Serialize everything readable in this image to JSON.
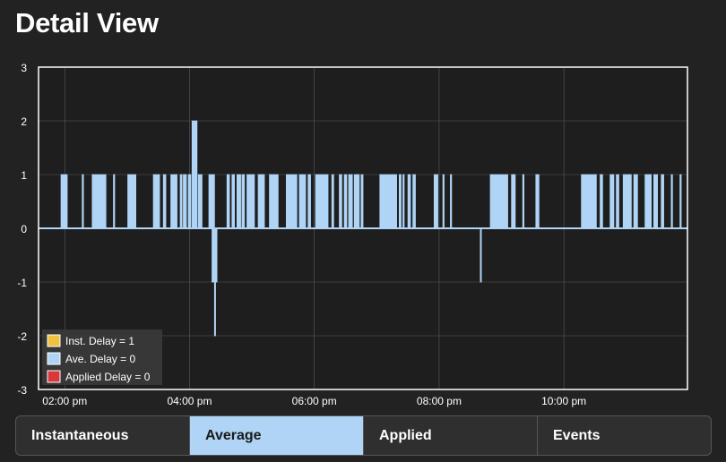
{
  "page": {
    "title": "Detail View"
  },
  "tabs": [
    {
      "label": "Instantaneous",
      "active": false
    },
    {
      "label": "Average",
      "active": true
    },
    {
      "label": "Applied",
      "active": false
    },
    {
      "label": "Events",
      "active": false
    }
  ],
  "colors": {
    "background": "#222222",
    "plot_area": "#1e1e1e",
    "grid": "#5a5a5a",
    "inst": "#f0c040",
    "ave": "#afd4f5",
    "applied": "#d9383a",
    "tab_active": "#afd4f5"
  },
  "chart_data": {
    "type": "line",
    "title": "",
    "xlabel": "",
    "ylabel": "",
    "ylim": [
      -3,
      3
    ],
    "yticks": [
      "3",
      "2",
      "1",
      "0",
      "-1",
      "-2",
      "-3"
    ],
    "xticks": [
      "02:00 pm",
      "04:00 pm",
      "06:00 pm",
      "08:00 pm",
      "10:00 pm"
    ],
    "xlim_hours": [
      13.58,
      23.98
    ],
    "grid": true,
    "legend_position": "bottom-left",
    "legend": [
      {
        "label": "Inst. Delay = 1",
        "color": "#f0c040"
      },
      {
        "label": "Ave. Delay = 0",
        "color": "#afd4f5"
      },
      {
        "label": "Applied Delay = 0",
        "color": "#d9383a"
      }
    ],
    "series": [
      {
        "name": "Ave. Delay",
        "baseline": 0,
        "pulses": [
          [
            13.94,
            14.04,
            1
          ],
          [
            14.28,
            14.3,
            1
          ],
          [
            14.44,
            14.66,
            1
          ],
          [
            14.78,
            14.8,
            1
          ],
          [
            15.01,
            15.14,
            1
          ],
          [
            15.42,
            15.52,
            1
          ],
          [
            15.58,
            15.62,
            1
          ],
          [
            15.7,
            15.8,
            1
          ],
          [
            15.85,
            15.88,
            1
          ],
          [
            15.9,
            15.95,
            1
          ],
          [
            15.98,
            16.02,
            1
          ],
          [
            16.04,
            16.12,
            2
          ],
          [
            16.14,
            16.2,
            1
          ],
          [
            16.31,
            16.4,
            1
          ],
          [
            16.36,
            16.44,
            -1
          ],
          [
            16.4,
            16.41,
            -2
          ],
          [
            16.6,
            16.64,
            1
          ],
          [
            16.68,
            16.72,
            1
          ],
          [
            16.76,
            16.82,
            1
          ],
          [
            16.84,
            16.88,
            1
          ],
          [
            16.92,
            17.04,
            1
          ],
          [
            17.1,
            17.2,
            1
          ],
          [
            17.28,
            17.42,
            1
          ],
          [
            17.55,
            17.72,
            1
          ],
          [
            17.76,
            17.86,
            1
          ],
          [
            17.9,
            17.94,
            1
          ],
          [
            18.02,
            18.22,
            1
          ],
          [
            18.28,
            18.31,
            1
          ],
          [
            18.4,
            18.44,
            1
          ],
          [
            18.48,
            18.52,
            1
          ],
          [
            18.55,
            18.61,
            1
          ],
          [
            18.64,
            18.72,
            1
          ],
          [
            18.75,
            18.78,
            1
          ],
          [
            19.05,
            19.32,
            1
          ],
          [
            19.36,
            19.39,
            1
          ],
          [
            19.42,
            19.44,
            1
          ],
          [
            19.5,
            19.54,
            1
          ],
          [
            19.58,
            19.62,
            1
          ],
          [
            19.92,
            19.98,
            1
          ],
          [
            20.06,
            20.08,
            1
          ],
          [
            20.18,
            20.2,
            1
          ],
          [
            20.66,
            20.67,
            -1
          ],
          [
            20.82,
            21.1,
            1
          ],
          [
            21.16,
            21.22,
            1
          ],
          [
            21.34,
            21.36,
            1
          ],
          [
            21.55,
            21.6,
            1
          ],
          [
            22.28,
            22.52,
            1
          ],
          [
            22.58,
            22.62,
            1
          ],
          [
            22.74,
            22.8,
            1
          ],
          [
            22.84,
            22.88,
            1
          ],
          [
            22.95,
            23.08,
            1
          ],
          [
            23.12,
            23.18,
            1
          ],
          [
            23.3,
            23.4,
            1
          ],
          [
            23.44,
            23.5,
            1
          ],
          [
            23.56,
            23.6,
            1
          ],
          [
            23.72,
            23.74,
            1
          ],
          [
            23.86,
            23.88,
            1
          ]
        ]
      }
    ]
  }
}
